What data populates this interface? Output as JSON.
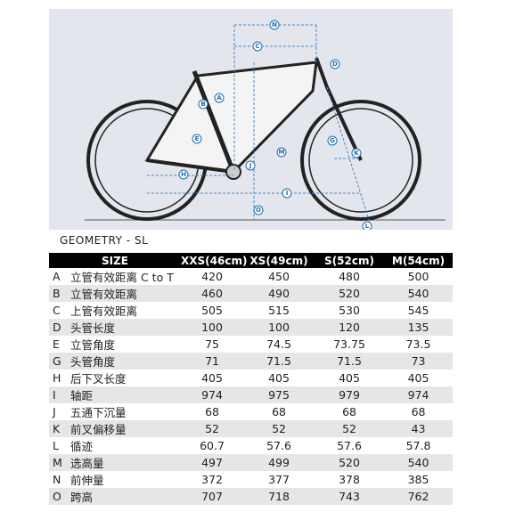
{
  "diagram": {
    "labels": [
      "N",
      "C",
      "D",
      "A",
      "B",
      "E",
      "M",
      "G",
      "K",
      "J",
      "H",
      "I",
      "O",
      "L"
    ]
  },
  "title": "GEOMETRY - SL",
  "table": {
    "header": [
      "SIZE",
      "XXS(46cm)",
      "XS(49cm)",
      "S(52cm)",
      "M(54cm)"
    ],
    "rows": [
      [
        "A",
        "立管有效距离 C to T",
        420,
        450,
        480,
        500
      ],
      [
        "B",
        "立管有效距离",
        460,
        490,
        520,
        540
      ],
      [
        "C",
        "上管有效距离",
        505,
        515,
        530,
        545
      ],
      [
        "D",
        "头管长度",
        100,
        100,
        120,
        135
      ],
      [
        "E",
        "立管角度",
        75,
        74.5,
        73.75,
        73.5
      ],
      [
        "G",
        "头管角度",
        71,
        71.5,
        71.5,
        73
      ],
      [
        "H",
        "后下叉长度",
        405,
        405,
        405,
        405
      ],
      [
        "I",
        "轴距",
        974,
        975,
        979,
        974
      ],
      [
        "J",
        "五通下沉量",
        68,
        68,
        68,
        68
      ],
      [
        "K",
        "前叉偏移量",
        52,
        52,
        52,
        43
      ],
      [
        "L",
        "循迹",
        60.7,
        57.6,
        57.6,
        57.8
      ],
      [
        "M",
        "选高量",
        497,
        499,
        520,
        540
      ],
      [
        "N",
        "前伸量",
        372,
        377,
        378,
        385
      ],
      [
        "O",
        "跨高",
        707,
        718,
        743,
        762
      ]
    ]
  }
}
